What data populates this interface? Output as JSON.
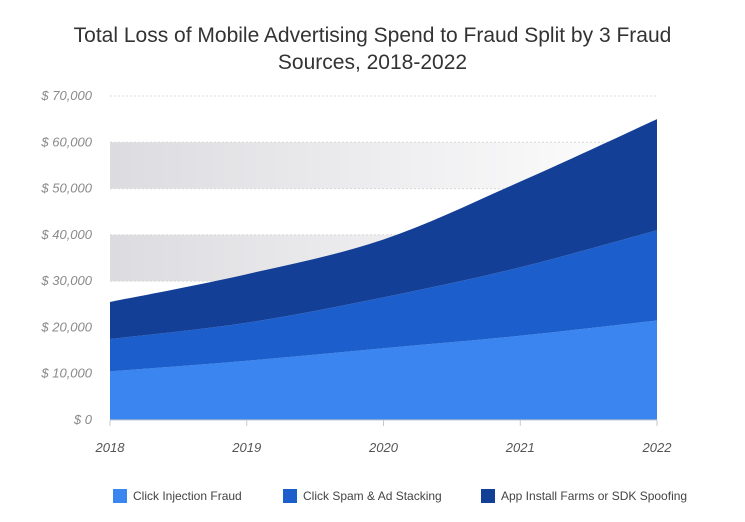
{
  "chart_data": {
    "type": "area",
    "stacked": true,
    "title_line1": "Total Loss of Mobile Advertising Spend to Fraud Split by 3 Fraud",
    "title_line2": "Sources, 2018-2022",
    "xlabel": "",
    "ylabel": "",
    "x": [
      "2018",
      "2019",
      "2020",
      "2021",
      "2022"
    ],
    "ylim": [
      0,
      70000
    ],
    "yticks": [
      0,
      10000,
      20000,
      30000,
      40000,
      50000,
      60000,
      70000
    ],
    "ytick_labels": [
      "$ 0",
      "$ 10,000",
      "$ 20,000",
      "$ 30,000",
      "$ 40,000",
      "$ 50,000",
      "$ 60,000",
      "$ 70,000"
    ],
    "grid": true,
    "legend_position": "bottom",
    "series": [
      {
        "name": "Click Injection Fraud",
        "color": "#3a85f0",
        "values": [
          10500,
          12800,
          15500,
          18200,
          21500
        ]
      },
      {
        "name": "Click Spam & Ad Stacking",
        "color": "#1c5fcc",
        "values": [
          7000,
          8200,
          11000,
          14800,
          19500
        ]
      },
      {
        "name": "App Install Farms or SDK Spoofing",
        "color": "#133f96",
        "values": [
          8000,
          10500,
          12500,
          18500,
          24000
        ]
      }
    ]
  }
}
